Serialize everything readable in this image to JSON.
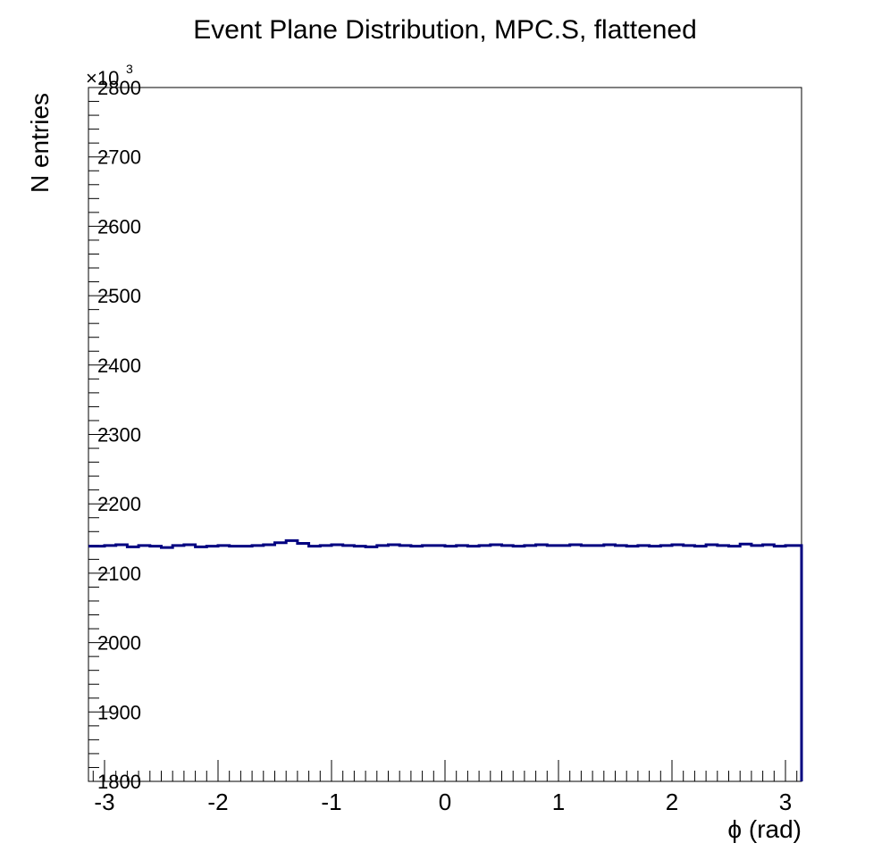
{
  "chart_data": {
    "type": "line",
    "title": "Event Plane Distribution, MPC.S, flattened",
    "xlabel": "ϕ (rad)",
    "ylabel": "N entries",
    "y_multiplier_label": "×10",
    "y_multiplier_exponent": "3",
    "xlim": [
      -3.1416,
      3.1416
    ],
    "ylim": [
      1800,
      2800
    ],
    "x_ticks": [
      -3,
      -2,
      -1,
      0,
      1,
      2,
      3
    ],
    "x_tick_labels": [
      "-3",
      "-2",
      "-1",
      "0",
      "1",
      "2",
      "3"
    ],
    "y_ticks": [
      1800,
      1900,
      2000,
      2100,
      2200,
      2300,
      2400,
      2500,
      2600,
      2700,
      2800
    ],
    "y_tick_labels": [
      "1800",
      "1900",
      "2000",
      "2100",
      "2200",
      "2300",
      "2400",
      "2500",
      "2600",
      "2700",
      "2800"
    ],
    "grid": false,
    "legend": "none",
    "series": [
      {
        "color": "#000080",
        "style": "step",
        "x": [
          -3.1416,
          -3.0,
          -2.9,
          -2.8,
          -2.7,
          -2.6,
          -2.5,
          -2.4,
          -2.3,
          -2.2,
          -2.1,
          -2.0,
          -1.9,
          -1.8,
          -1.7,
          -1.6,
          -1.5,
          -1.4,
          -1.3,
          -1.2,
          -1.1,
          -1.0,
          -0.9,
          -0.8,
          -0.7,
          -0.6,
          -0.5,
          -0.4,
          -0.3,
          -0.2,
          -0.1,
          0.0,
          0.1,
          0.2,
          0.3,
          0.4,
          0.5,
          0.6,
          0.7,
          0.8,
          0.9,
          1.0,
          1.1,
          1.2,
          1.3,
          1.4,
          1.5,
          1.6,
          1.7,
          1.8,
          1.9,
          2.0,
          2.1,
          2.2,
          2.3,
          2.4,
          2.5,
          2.6,
          2.7,
          2.8,
          2.9,
          3.0,
          3.1416
        ],
        "values": [
          2139,
          2140,
          2141,
          2138,
          2140,
          2139,
          2137,
          2140,
          2141,
          2138,
          2139,
          2140,
          2139,
          2139,
          2140,
          2141,
          2144,
          2147,
          2143,
          2139,
          2140,
          2141,
          2140,
          2139,
          2138,
          2140,
          2141,
          2140,
          2139,
          2140,
          2140,
          2139,
          2140,
          2139,
          2140,
          2141,
          2140,
          2139,
          2140,
          2141,
          2140,
          2140,
          2141,
          2140,
          2140,
          2141,
          2140,
          2139,
          2140,
          2139,
          2140,
          2141,
          2140,
          2139,
          2141,
          2140,
          2139,
          2142,
          2140,
          2141,
          2139,
          2140,
          2139
        ]
      }
    ]
  }
}
